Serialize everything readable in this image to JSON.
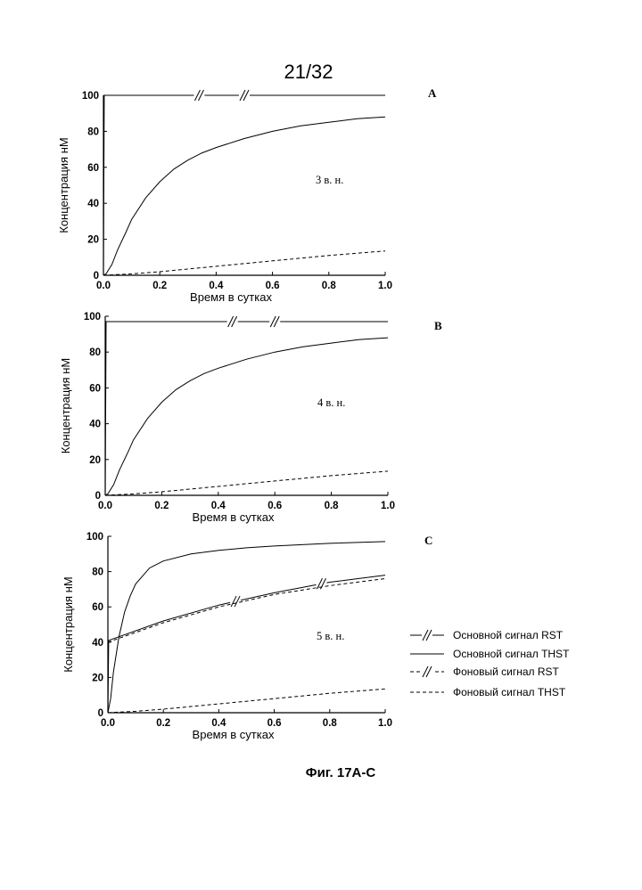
{
  "page_number": "21/32",
  "figure_caption": "Фиг. 17A-C",
  "legend": [
    {
      "label": "Основной сигнал RST",
      "style": "solid-break"
    },
    {
      "label": "Основной сигнал THST",
      "style": "solid"
    },
    {
      "label": "Фоновый сигнал RST",
      "style": "dashed-break"
    },
    {
      "label": "Фоновый сигнал THST",
      "style": "dashed"
    }
  ],
  "chart_data": [
    {
      "type": "line",
      "panel": "A",
      "annotation": "3 в. н.",
      "xlabel": "Время в сутках",
      "ylabel": "Концентрация нМ",
      "xlim": [
        0,
        1.0
      ],
      "ylim": [
        0,
        100
      ],
      "xticks": [
        "0.0",
        "0.2",
        "0.4",
        "0.6",
        "0.8",
        "1.0"
      ],
      "yticks": [
        "0",
        "20",
        "40",
        "60",
        "80",
        "100"
      ],
      "series": [
        {
          "style": "solid-break",
          "x": [
            0,
            0.003,
            0.02,
            1.0
          ],
          "y": [
            0,
            100,
            100,
            100
          ],
          "breaks_at": [
            0.34,
            0.5
          ]
        },
        {
          "style": "solid",
          "x": [
            0,
            0.01,
            0.03,
            0.05,
            0.08,
            0.1,
            0.15,
            0.2,
            0.25,
            0.3,
            0.35,
            0.4,
            0.5,
            0.6,
            0.7,
            0.8,
            0.9,
            1.0
          ],
          "y": [
            0,
            1,
            6,
            14,
            24,
            31,
            43,
            52,
            59,
            64,
            68,
            71,
            76,
            80,
            83,
            85,
            87,
            88
          ]
        },
        {
          "style": "dashed",
          "x": [
            0,
            0.1,
            0.2,
            0.4,
            0.6,
            0.8,
            1.0
          ],
          "y": [
            0,
            0.8,
            2,
            5,
            8,
            11,
            13.5
          ]
        }
      ]
    },
    {
      "type": "line",
      "panel": "B",
      "annotation": "4 в. н.",
      "xlabel": "Время в сутках",
      "ylabel": "Концентрация нМ",
      "xlim": [
        0,
        1.0
      ],
      "ylim": [
        0,
        100
      ],
      "xticks": [
        "0.0",
        "0.2",
        "0.4",
        "0.6",
        "0.8",
        "1.0"
      ],
      "yticks": [
        "0",
        "20",
        "40",
        "60",
        "80",
        "100"
      ],
      "series": [
        {
          "style": "solid-break",
          "x": [
            0,
            0.003,
            0.02,
            1.0
          ],
          "y": [
            0,
            97,
            97,
            97
          ],
          "breaks_at": [
            0.45,
            0.6
          ]
        },
        {
          "style": "solid",
          "x": [
            0,
            0.01,
            0.03,
            0.05,
            0.08,
            0.1,
            0.15,
            0.2,
            0.25,
            0.3,
            0.35,
            0.4,
            0.5,
            0.6,
            0.7,
            0.8,
            0.9,
            1.0
          ],
          "y": [
            0,
            1,
            6,
            14,
            24,
            31,
            43,
            52,
            59,
            64,
            68,
            71,
            76,
            80,
            83,
            85,
            87,
            88
          ]
        },
        {
          "style": "dashed",
          "x": [
            0,
            0.1,
            0.2,
            0.4,
            0.6,
            0.8,
            1.0
          ],
          "y": [
            0,
            0.8,
            2,
            5,
            8,
            11,
            13.5
          ]
        }
      ]
    },
    {
      "type": "line",
      "panel": "C",
      "annotation": "5 в. н.",
      "xlabel": "Время в сутках",
      "ylabel": "Концентрация нМ",
      "xlim": [
        0,
        1.0
      ],
      "ylim": [
        0,
        100
      ],
      "xticks": [
        "0.0",
        "0.2",
        "0.4",
        "0.6",
        "0.8",
        "1.0"
      ],
      "yticks": [
        "0",
        "20",
        "40",
        "60",
        "80",
        "100"
      ],
      "series": [
        {
          "style": "solid-break",
          "x": [
            0,
            0.003,
            0.2,
            0.4,
            0.6,
            0.8,
            1.0
          ],
          "y": [
            0,
            41,
            52,
            61,
            68,
            74,
            78
          ],
          "breaks_at": [
            0.46,
            0.77
          ]
        },
        {
          "style": "solid",
          "x": [
            0,
            0.01,
            0.02,
            0.04,
            0.06,
            0.08,
            0.1,
            0.15,
            0.2,
            0.3,
            0.4,
            0.5,
            0.6,
            0.8,
            1.0
          ],
          "y": [
            0,
            8,
            23,
            43,
            57,
            66,
            73,
            82,
            86,
            90,
            92,
            93.5,
            94.5,
            96,
            97
          ]
        },
        {
          "style": "dashed",
          "x": [
            0,
            0.2,
            0.4,
            0.6,
            0.8,
            1.0
          ],
          "y": [
            40,
            51,
            60,
            67,
            72,
            76
          ]
        },
        {
          "style": "dashed",
          "x": [
            0,
            0.1,
            0.2,
            0.4,
            0.6,
            0.8,
            1.0
          ],
          "y": [
            0,
            0.8,
            2,
            5,
            8,
            11,
            13.5
          ]
        }
      ]
    }
  ]
}
